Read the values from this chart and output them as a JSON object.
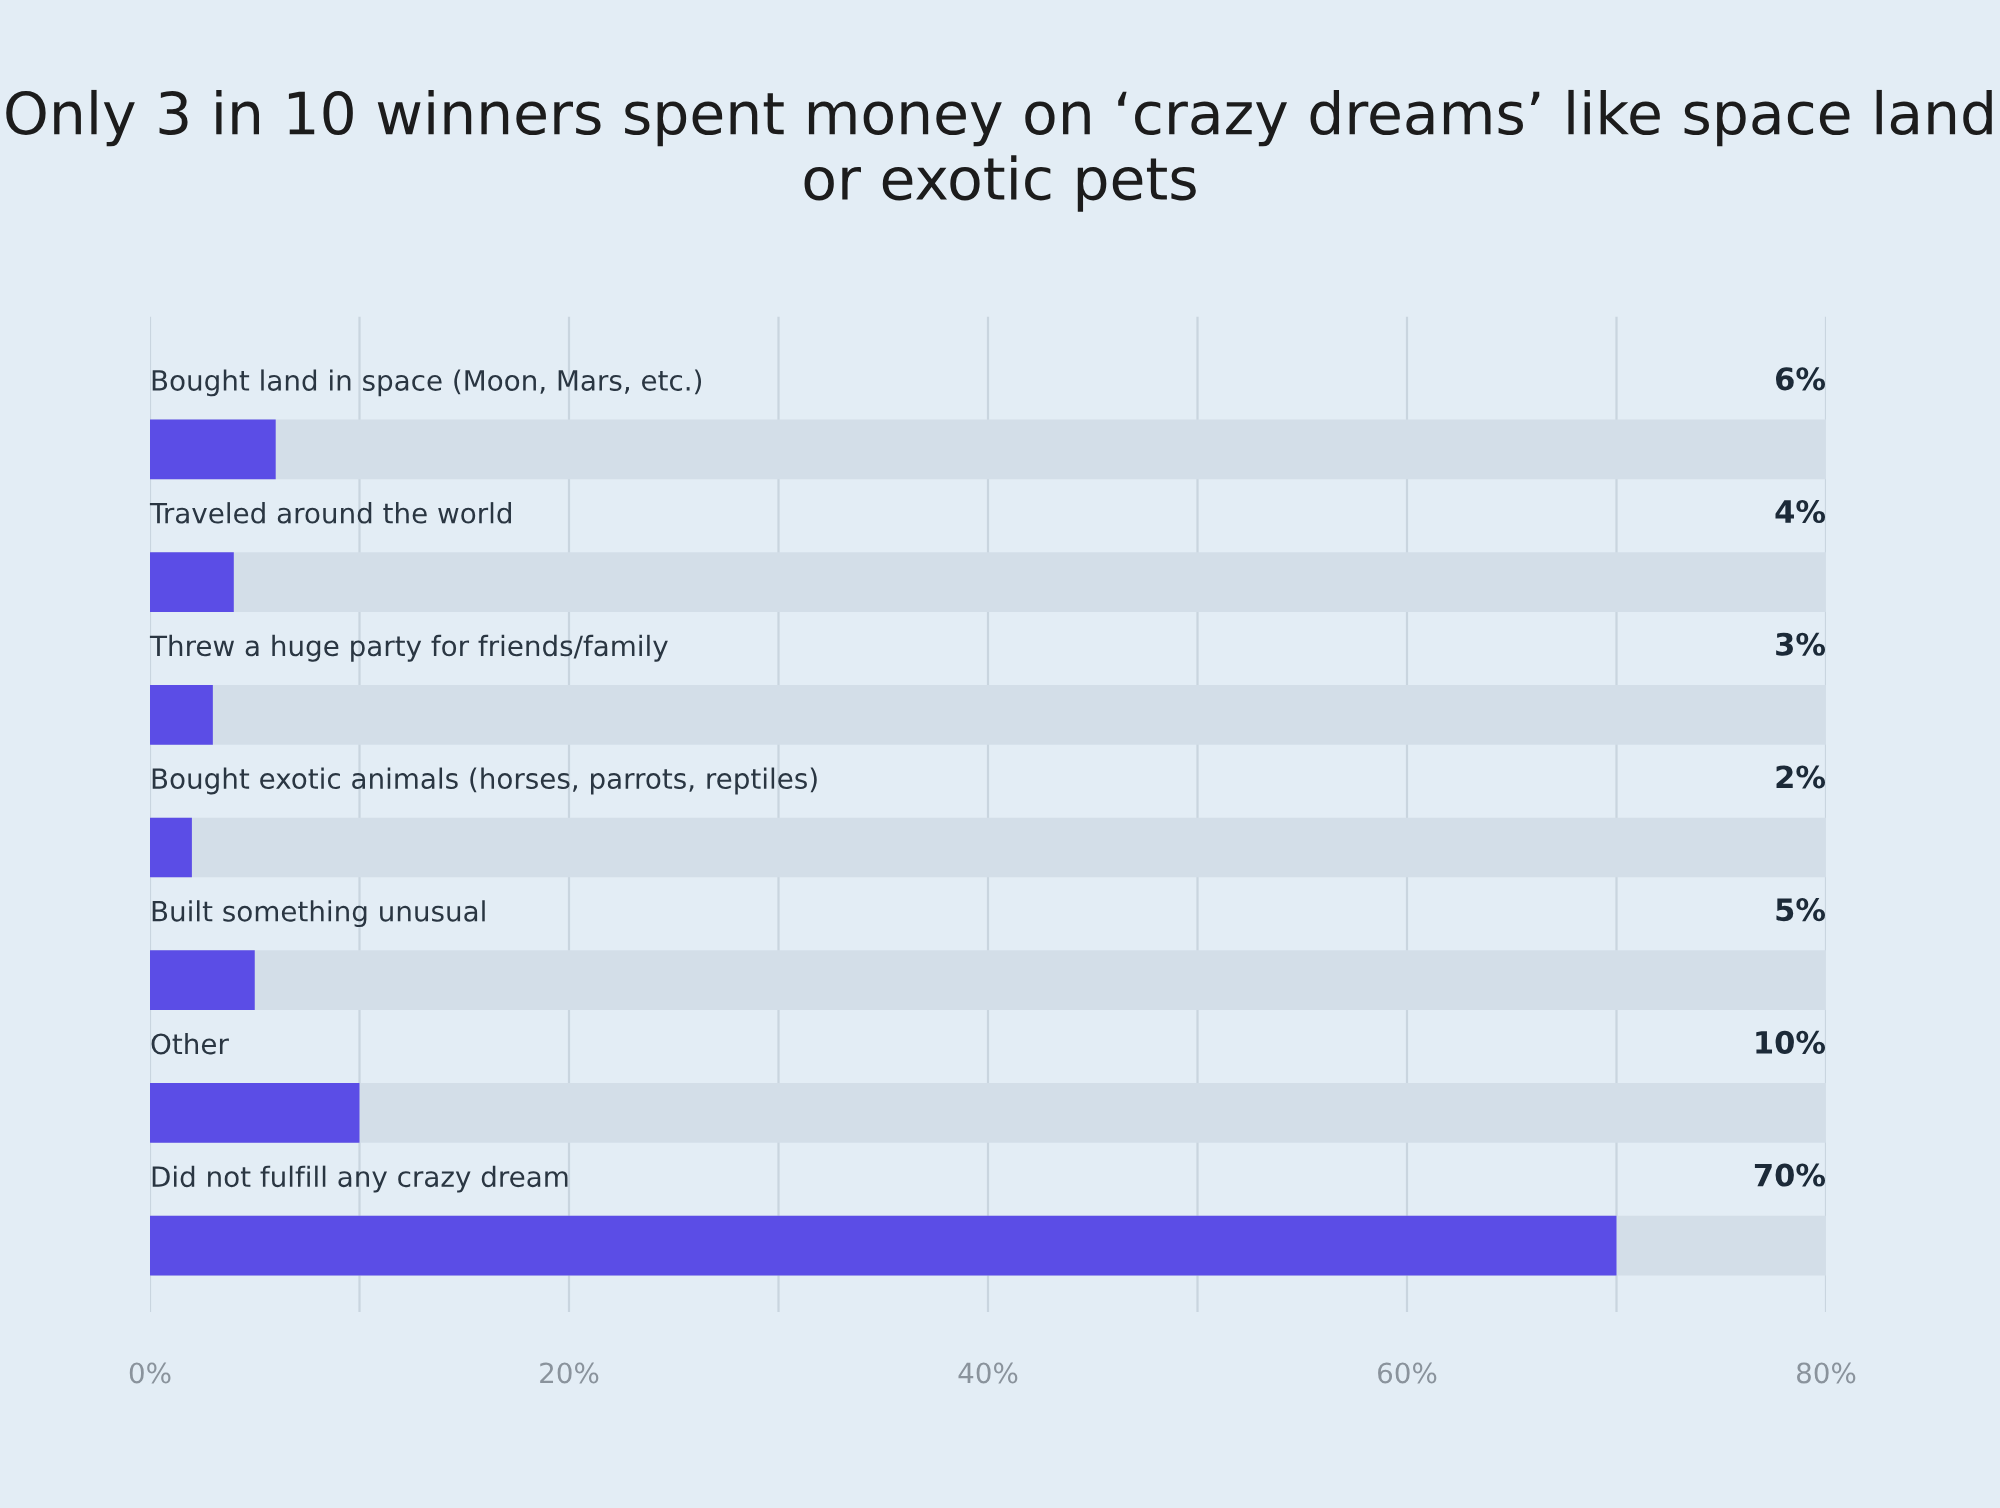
{
  "chart_data": {
    "type": "bar",
    "orientation": "horizontal",
    "title": "Only 3 in 10 winners spent money on ‘crazy dreams’ like space land or exotic pets",
    "categories": [
      "Bought land in space (Moon, Mars, etc.)",
      "Traveled around the world",
      "Threw a huge party for friends/family",
      "Bought exotic animals (horses, parrots, reptiles)",
      "Built something unusual",
      "Other",
      "Did not fulfill any crazy dream"
    ],
    "values": [
      6,
      4,
      3,
      2,
      5,
      10,
      70
    ],
    "value_labels": [
      "6%",
      "4%",
      "3%",
      "2%",
      "5%",
      "10%",
      "70%"
    ],
    "color": "#5b4de6",
    "xlim": [
      0,
      80
    ],
    "xticks": [
      {
        "value": 0,
        "label": "0%"
      },
      {
        "value": 10,
        "label": null
      },
      {
        "value": 20,
        "label": "20%"
      },
      {
        "value": 30,
        "label": null
      },
      {
        "value": 40,
        "label": "40%"
      },
      {
        "value": 50,
        "label": null
      },
      {
        "value": 60,
        "label": "60%"
      },
      {
        "value": 70,
        "label": null
      },
      {
        "value": 80,
        "label": "80%"
      }
    ],
    "grid": "x"
  }
}
